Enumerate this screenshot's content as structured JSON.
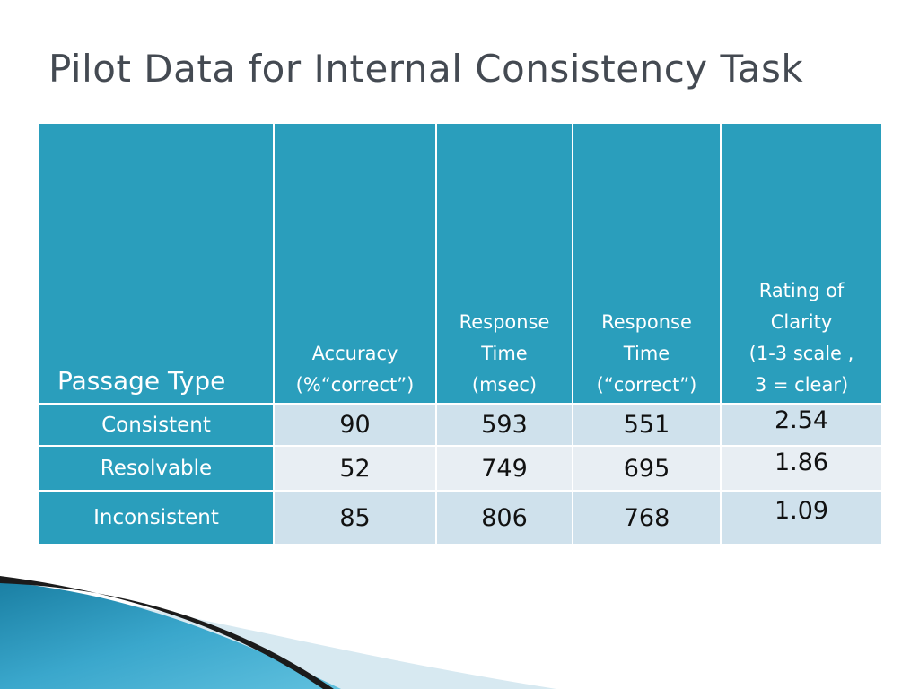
{
  "slide": {
    "title": "Pilot Data for Internal Consistency Task"
  },
  "table": {
    "headers": [
      "Passage Type",
      [
        "Accuracy",
        "(%“correct”)"
      ],
      [
        "Response",
        "Time",
        "(msec)"
      ],
      [
        "Response",
        "Time",
        "(“correct”)"
      ],
      [
        "Rating of",
        "Clarity",
        "(1-3 scale ,",
        "3 = clear)"
      ]
    ],
    "rows": [
      {
        "label": "Consistent",
        "accuracy": "90",
        "rt_msec": "593",
        "rt_correct": "551",
        "rating": "2.54"
      },
      {
        "label": "Resolvable",
        "accuracy": "52",
        "rt_msec": "749",
        "rt_correct": "695",
        "rating": "1.86"
      },
      {
        "label": "Inconsistent",
        "accuracy": "85",
        "rt_msec": "806",
        "rt_correct": "768",
        "rating": "1.09"
      }
    ]
  },
  "colors": {
    "header_bg": "#2a9ebc",
    "row_odd_bg": "#cfe1ec",
    "row_even_bg": "#e8eef3",
    "title_text": "#444a52"
  }
}
